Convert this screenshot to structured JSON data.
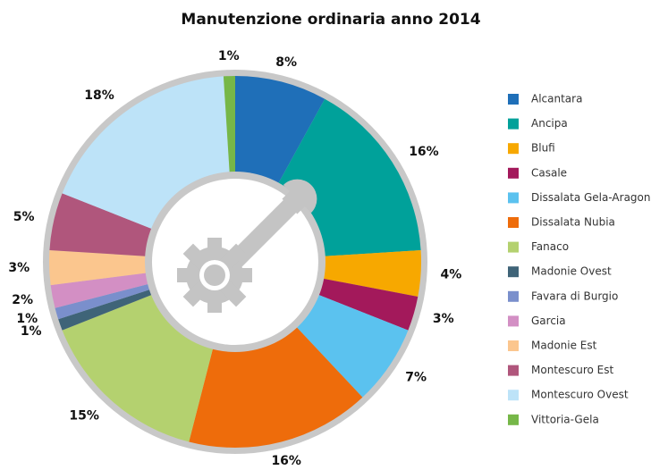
{
  "chart_data": {
    "type": "pie",
    "title": "Manutenzione ordinaria anno 2014",
    "categories": [
      "Alcantara",
      "Ancipa",
      "Blufi",
      "Casale",
      "Dissalata Gela-Aragona",
      "Dissalata Nubia",
      "Fanaco",
      "Madonie Ovest",
      "Favara di Burgio",
      "Garcia",
      "Madonie Est",
      "Montescuro Est",
      "Montescuro Ovest",
      "Vittoria-Gela"
    ],
    "values": [
      8,
      16,
      4,
      3,
      7,
      16,
      15,
      1,
      1,
      2,
      3,
      5,
      18,
      1
    ],
    "value_labels": [
      "8%",
      "16%",
      "4%",
      "3%",
      "7%",
      "16%",
      "15%",
      "1%",
      "1%",
      "2%",
      "3%",
      "5%",
      "18%",
      "1%"
    ],
    "colors": [
      "#1f6fb8",
      "#00a19a",
      "#f7a800",
      "#a3195b",
      "#5bc2ef",
      "#ee6c0b",
      "#b4d16f",
      "#3f6478",
      "#7a8fcc",
      "#d38fc4",
      "#fbc68e",
      "#b0567c",
      "#bde3f8",
      "#76b748"
    ],
    "legend": "right"
  }
}
